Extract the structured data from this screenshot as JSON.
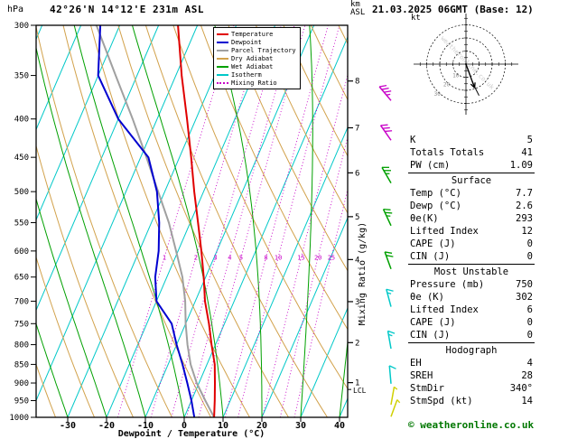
{
  "header": {
    "pressure_unit": "hPa",
    "station": "42°26'N 14°12'E 231m ASL",
    "altitude_unit_line1": "km",
    "altitude_unit_line2": "ASL",
    "datetime": "21.03.2025 06GMT (Base: 12)"
  },
  "axes": {
    "xlabel": "Dewpoint / Temperature (°C)",
    "right_label": "Mixing Ratio (g/kg)",
    "lcl": "LCL"
  },
  "hodograph": {
    "unit": "kt"
  },
  "legend": {
    "items": [
      {
        "key": "temperature",
        "label": "Temperature",
        "color": "#e00000",
        "dash": ""
      },
      {
        "key": "dewpoint",
        "label": "Dewpoint",
        "color": "#0000d0",
        "dash": ""
      },
      {
        "key": "parcel",
        "label": "Parcel Trajectory",
        "color": "#a0a0a0",
        "dash": ""
      },
      {
        "key": "dry",
        "label": "Dry Adiabat",
        "color": "#d2a24c",
        "dash": ""
      },
      {
        "key": "wet",
        "label": "Wet Adiabat",
        "color": "#00a000",
        "dash": ""
      },
      {
        "key": "isotherm",
        "label": "Isotherm",
        "color": "#00c8c8",
        "dash": ""
      },
      {
        "key": "mixing",
        "label": "Mixing Ratio",
        "color": "#c800c8",
        "dash": "1,2.5"
      }
    ]
  },
  "panel": {
    "indices": [
      {
        "label": "K",
        "value": "5"
      },
      {
        "label": "Totals Totals",
        "value": "41"
      },
      {
        "label": "PW (cm)",
        "value": "1.09"
      }
    ],
    "sections": [
      {
        "title": "Surface",
        "rows": [
          {
            "label": "Temp (°C)",
            "value": "7.7"
          },
          {
            "label": "Dewp (°C)",
            "value": "2.6"
          },
          {
            "label": "θe(K)",
            "value": "293"
          },
          {
            "label": "Lifted Index",
            "value": "12"
          },
          {
            "label": "CAPE (J)",
            "value": "0"
          },
          {
            "label": "CIN (J)",
            "value": "0"
          }
        ]
      },
      {
        "title": "Most Unstable",
        "rows": [
          {
            "label": "Pressure (mb)",
            "value": "750"
          },
          {
            "label": "θe (K)",
            "value": "302"
          },
          {
            "label": "Lifted Index",
            "value": "6"
          },
          {
            "label": "CAPE (J)",
            "value": "0"
          },
          {
            "label": "CIN (J)",
            "value": "0"
          }
        ]
      },
      {
        "title": "Hodograph",
        "rows": [
          {
            "label": "EH",
            "value": "4"
          },
          {
            "label": "SREH",
            "value": "28"
          },
          {
            "label": "StmDir",
            "value": "340°"
          },
          {
            "label": "StmSpd (kt)",
            "value": "14"
          }
        ]
      }
    ]
  },
  "footer": {
    "copyright": "© weatheronline.co.uk"
  },
  "chart_data": {
    "type": "line",
    "subtype": "skew-t-log-p-sounding",
    "title": "42°26'N 14°12'E 231m ASL  21.03.2025 06GMT (Base: 12)",
    "xlabel": "Dewpoint / Temperature (°C)",
    "ylabel": "hPa",
    "pressure_ticks_hpa": [
      300,
      350,
      400,
      450,
      500,
      550,
      600,
      650,
      700,
      750,
      800,
      850,
      900,
      950,
      1000
    ],
    "temp_ticks_c": [
      -30,
      -20,
      -10,
      0,
      10,
      20,
      30,
      40
    ],
    "km_ticks": [
      {
        "km": 8,
        "p": 356
      },
      {
        "km": 7,
        "p": 411
      },
      {
        "km": 6,
        "p": 472
      },
      {
        "km": 5,
        "p": 540
      },
      {
        "km": 4,
        "p": 616
      },
      {
        "km": 3,
        "p": 701
      },
      {
        "km": 2,
        "p": 795
      },
      {
        "km": 1,
        "p": 899
      }
    ],
    "lcl_p": 918,
    "mixing_ratio_gkg": [
      1,
      2,
      3,
      4,
      5,
      8,
      10,
      15,
      20,
      25
    ],
    "isotherms_c": {
      "min": -130,
      "max": 40,
      "step": 10
    },
    "dry_adiabats_k": {
      "min": 210,
      "max": 440,
      "step": 10
    },
    "wet_adiabats_c": {
      "min": -80,
      "max": 40,
      "step": 10
    },
    "series": [
      {
        "name": "Temperature (°C vs hPa)",
        "points": [
          [
            1000,
            7.7
          ],
          [
            950,
            6.0
          ],
          [
            900,
            4.1
          ],
          [
            850,
            2.0
          ],
          [
            800,
            -1.0
          ],
          [
            750,
            -4.0
          ],
          [
            700,
            -7.5
          ],
          [
            650,
            -10.5
          ],
          [
            600,
            -14.0
          ],
          [
            550,
            -18.0
          ],
          [
            500,
            -22.4
          ],
          [
            450,
            -27.0
          ],
          [
            400,
            -32.3
          ],
          [
            350,
            -38.5
          ],
          [
            300,
            -45.0
          ]
        ]
      },
      {
        "name": "Dewpoint (°C vs hPa)",
        "points": [
          [
            1000,
            2.6
          ],
          [
            950,
            0.0
          ],
          [
            900,
            -3.0
          ],
          [
            850,
            -6.3
          ],
          [
            800,
            -10.0
          ],
          [
            750,
            -13.6
          ],
          [
            700,
            -20.0
          ],
          [
            650,
            -23.0
          ],
          [
            600,
            -25.0
          ],
          [
            550,
            -28.0
          ],
          [
            500,
            -32.0
          ],
          [
            450,
            -38.0
          ],
          [
            400,
            -50.0
          ],
          [
            350,
            -60.0
          ],
          [
            300,
            -65.0
          ]
        ]
      },
      {
        "name": "Parcel Trajectory (°C vs hPa)",
        "points": [
          [
            1000,
            7.7
          ],
          [
            950,
            3.6
          ],
          [
            900,
            -0.6
          ],
          [
            850,
            -4.2
          ],
          [
            800,
            -7.2
          ],
          [
            750,
            -10.0
          ],
          [
            700,
            -12.6
          ],
          [
            650,
            -16.0
          ],
          [
            600,
            -20.5
          ],
          [
            550,
            -25.5
          ],
          [
            500,
            -31.7
          ],
          [
            450,
            -38.5
          ],
          [
            400,
            -46.3
          ],
          [
            350,
            -55.5
          ],
          [
            300,
            -66.0
          ]
        ]
      }
    ],
    "wind_barbs": [
      {
        "p": 378,
        "dir": 320,
        "spd": 35,
        "color": "#c800c8"
      },
      {
        "p": 427,
        "dir": 325,
        "spd": 30,
        "color": "#c800c8"
      },
      {
        "p": 487,
        "dir": 330,
        "spd": 25,
        "color": "#00a000"
      },
      {
        "p": 555,
        "dir": 335,
        "spd": 25,
        "color": "#00a000"
      },
      {
        "p": 634,
        "dir": 340,
        "spd": 20,
        "color": "#00a000"
      },
      {
        "p": 712,
        "dir": 345,
        "spd": 15,
        "color": "#00c8c8"
      },
      {
        "p": 810,
        "dir": 350,
        "spd": 15,
        "color": "#00c8c8"
      },
      {
        "p": 902,
        "dir": 355,
        "spd": 12,
        "color": "#00c8c8"
      },
      {
        "p": 962,
        "dir": 10,
        "spd": 8,
        "color": "#d0d000"
      },
      {
        "p": 998,
        "dir": 20,
        "spd": 5,
        "color": "#d0d000"
      }
    ],
    "hodograph": {
      "rings_kt": [
        10,
        20,
        30
      ],
      "storm_dir_deg": 340,
      "storm_speed_kt": 14,
      "trace_uv_kt": [
        [
          0,
          0
        ],
        [
          2,
          -5
        ],
        [
          4,
          -11
        ],
        [
          7,
          -18
        ],
        [
          10,
          -24
        ]
      ]
    }
  }
}
